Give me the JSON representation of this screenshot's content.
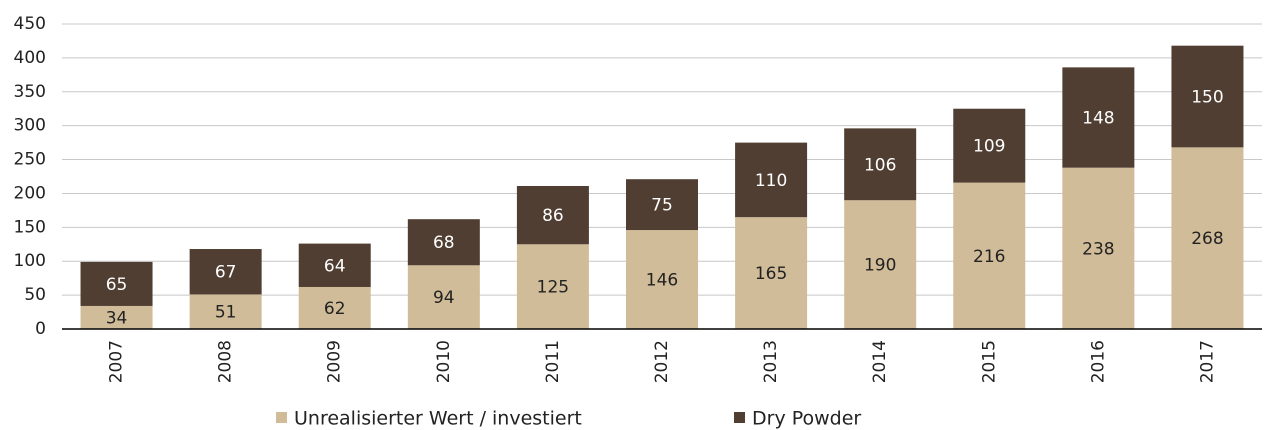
{
  "chart_data": {
    "type": "stacked_bar",
    "categories": [
      "2007",
      "2008",
      "2009",
      "2010",
      "2011",
      "2012",
      "2013",
      "2014",
      "2015",
      "2016",
      "2017"
    ],
    "series": [
      {
        "name": "Unrealisierter Wert / investiert",
        "color": "#d0bc98",
        "values": [
          34,
          51,
          62,
          94,
          125,
          146,
          165,
          190,
          216,
          238,
          268
        ]
      },
      {
        "name": "Dry Powder",
        "color": "#4f3e31",
        "values": [
          65,
          67,
          64,
          68,
          86,
          75,
          110,
          106,
          109,
          148,
          150
        ]
      }
    ],
    "ylim": [
      0,
      450
    ],
    "yticks": [
      0,
      50,
      100,
      150,
      200,
      250,
      300,
      350,
      400,
      450
    ],
    "grid": true
  }
}
